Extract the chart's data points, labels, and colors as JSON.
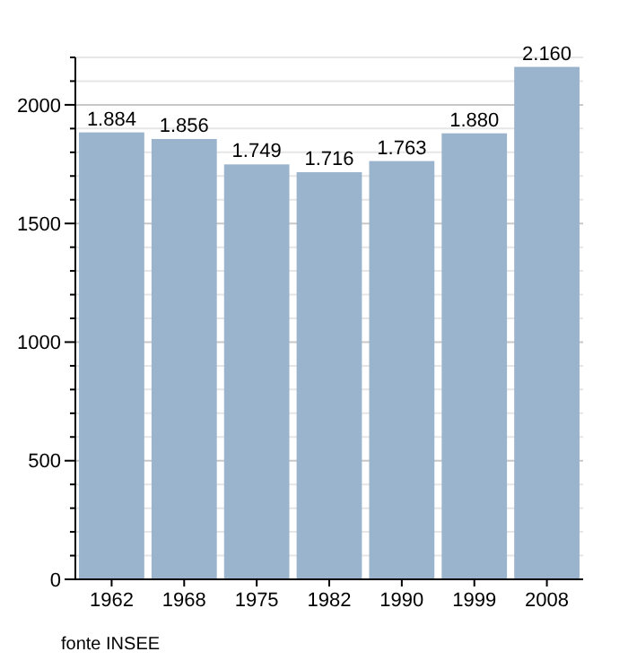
{
  "chart_data": {
    "type": "bar",
    "categories": [
      "1962",
      "1968",
      "1975",
      "1982",
      "1990",
      "1999",
      "2008"
    ],
    "values": [
      1884,
      1856,
      1749,
      1716,
      1763,
      1880,
      2160
    ],
    "value_labels": [
      "1.884",
      "1.856",
      "1.749",
      "1.716",
      "1.763",
      "1.880",
      "2.160"
    ],
    "color": "#9ab4cd",
    "ylim": [
      0,
      2200
    ],
    "yticks": [
      0,
      {
        "value": 100,
        "label": null
      },
      {
        "value": 200,
        "label": null
      },
      {
        "value": 300,
        "label": null
      },
      {
        "value": 400,
        "label": null
      },
      500,
      {
        "value": 600,
        "label": null
      },
      {
        "value": 700,
        "label": null
      },
      {
        "value": 800,
        "label": null
      },
      {
        "value": 900,
        "label": null
      },
      1000,
      {
        "value": 1100,
        "label": null
      },
      {
        "value": 1200,
        "label": null
      },
      {
        "value": 1300,
        "label": null
      },
      {
        "value": 1400,
        "label": null
      },
      1500,
      {
        "value": 1600,
        "label": null
      },
      {
        "value": 1700,
        "label": null
      },
      {
        "value": 1800,
        "label": null
      },
      {
        "value": 1900,
        "label": null
      },
      2000,
      {
        "value": 2100,
        "label": null
      },
      {
        "value": 2200,
        "label": null
      }
    ],
    "grid": "y",
    "annotations": [
      "fonte INSEE"
    ]
  }
}
